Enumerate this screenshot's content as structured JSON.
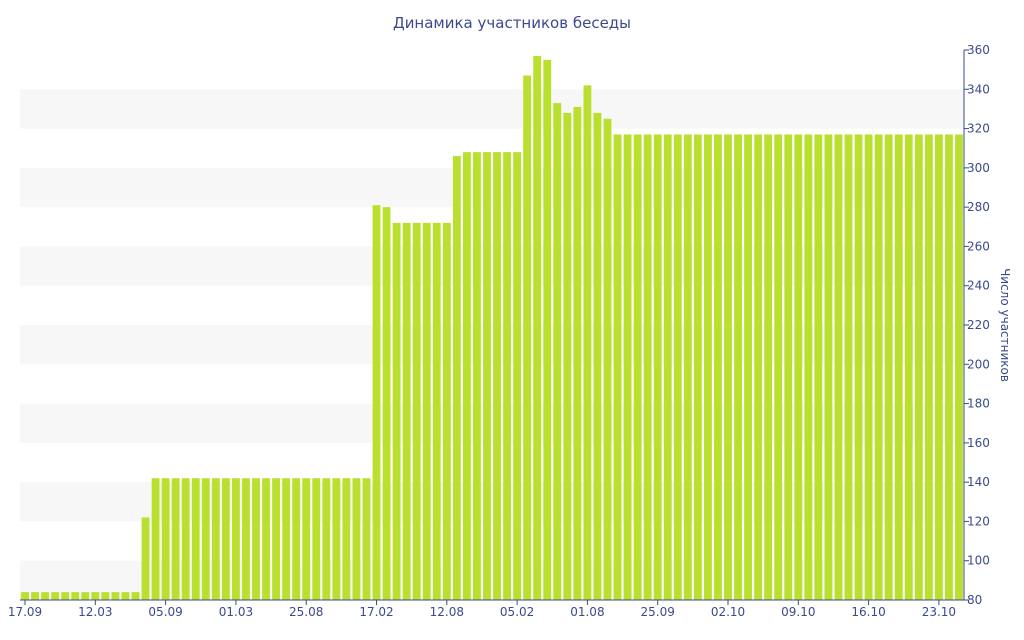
{
  "chart_data": {
    "type": "bar",
    "title": "Динамика участников беседы",
    "xlabel": "",
    "ylabel": "Число участников",
    "ylim": [
      80,
      360
    ],
    "yticks": [
      80,
      100,
      120,
      140,
      160,
      180,
      200,
      220,
      240,
      260,
      280,
      300,
      320,
      340,
      360
    ],
    "xtick_labels": [
      {
        "index": 0,
        "label": "17.09"
      },
      {
        "index": 7,
        "label": "12.03"
      },
      {
        "index": 14,
        "label": "05.09"
      },
      {
        "index": 21,
        "label": "01.03"
      },
      {
        "index": 28,
        "label": "25.08"
      },
      {
        "index": 35,
        "label": "17.02"
      },
      {
        "index": 42,
        "label": "12.08"
      },
      {
        "index": 49,
        "label": "05.02"
      },
      {
        "index": 56,
        "label": "01.08"
      },
      {
        "index": 63,
        "label": "25.09"
      },
      {
        "index": 70,
        "label": "02.10"
      },
      {
        "index": 77,
        "label": "09.10"
      },
      {
        "index": 84,
        "label": "16.10"
      },
      {
        "index": 91,
        "label": "23.10"
      }
    ],
    "grid": "horizontal bands",
    "y_axis_position": "right",
    "bar_color": "#b9df2f",
    "band_color": "#f7f7f7",
    "values": [
      84,
      84,
      84,
      84,
      84,
      84,
      84,
      84,
      84,
      84,
      84,
      84,
      122,
      142,
      142,
      142,
      142,
      142,
      142,
      142,
      142,
      142,
      142,
      142,
      142,
      142,
      142,
      142,
      142,
      142,
      142,
      142,
      142,
      142,
      142,
      281,
      280,
      272,
      272,
      272,
      272,
      272,
      272,
      306,
      308,
      308,
      308,
      308,
      308,
      308,
      347,
      357,
      355,
      333,
      328,
      331,
      342,
      328,
      325,
      317,
      317,
      317,
      317,
      317,
      317,
      317,
      317,
      317,
      317,
      317,
      317,
      317,
      317,
      317,
      317,
      317,
      317,
      317,
      317,
      317,
      317,
      317,
      317,
      317,
      317,
      317,
      317,
      317,
      317,
      317,
      317,
      317,
      317,
      317
    ]
  }
}
